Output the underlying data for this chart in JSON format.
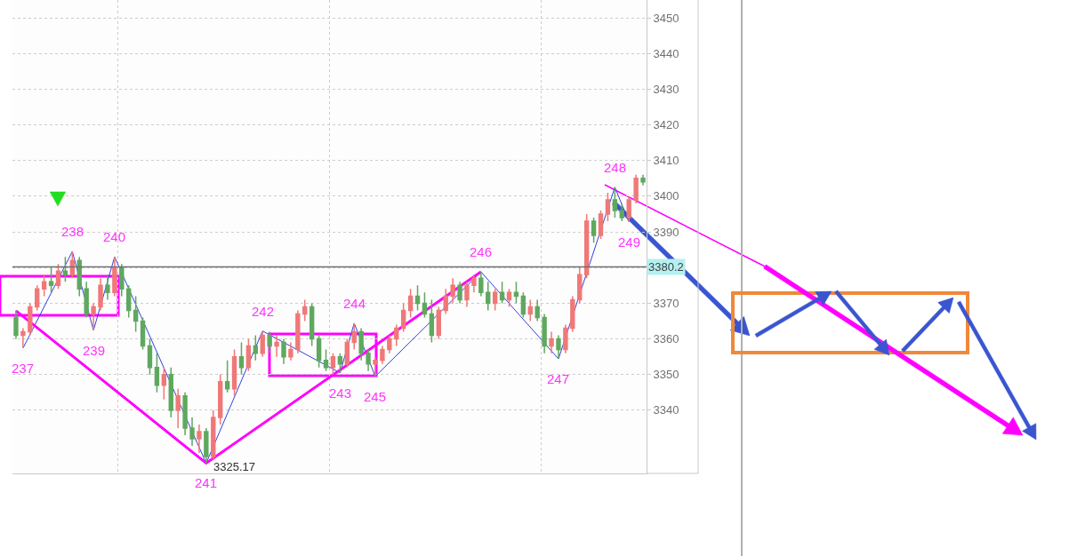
{
  "chart_data": {
    "type": "candlestick",
    "categories": [
      null,
      null,
      null,
      null,
      null,
      null,
      null,
      null,
      null,
      null,
      null,
      null,
      null,
      null,
      null,
      null,
      null,
      null,
      null,
      null,
      null,
      null,
      null,
      null,
      null,
      null,
      null,
      null,
      null,
      null,
      null,
      null,
      null,
      null,
      null,
      null,
      null,
      null,
      null,
      null,
      null,
      null,
      null,
      null,
      null,
      null,
      null,
      null,
      null,
      null,
      null,
      null,
      null,
      null,
      null,
      null,
      null,
      null,
      null,
      null,
      null,
      null,
      null,
      null,
      null,
      null,
      null,
      null,
      null,
      null,
      null,
      null,
      null,
      null,
      null,
      null,
      null,
      null,
      null,
      null,
      null,
      null,
      null,
      null,
      null,
      null,
      null,
      null,
      null,
      null
    ],
    "ohlc": [
      [
        3366,
        3368,
        3360,
        3361
      ],
      [
        3361,
        3363,
        3357.4,
        3362
      ],
      [
        3362,
        3370,
        3361,
        3369
      ],
      [
        3369,
        3375,
        3368,
        3374
      ],
      [
        3374,
        3378,
        3372,
        3376
      ],
      [
        3376,
        3380,
        3373,
        3375
      ],
      [
        3375,
        3381,
        3374,
        3379
      ],
      [
        3379,
        3383,
        3376,
        3378
      ],
      [
        3378,
        3384.5,
        3377,
        3382
      ],
      [
        3382,
        3383,
        3372,
        3374
      ],
      [
        3374,
        3376,
        3366,
        3367
      ],
      [
        3367,
        3370,
        3362.4,
        3369
      ],
      [
        3369,
        3377,
        3368,
        3375
      ],
      [
        3375,
        3378,
        3371,
        3373
      ],
      [
        3373,
        3383,
        3372,
        3380
      ],
      [
        3380,
        3381,
        3372,
        3374
      ],
      [
        3374,
        3375,
        3366,
        3368
      ],
      [
        3368,
        3372,
        3362,
        3365
      ],
      [
        3365,
        3366,
        3357,
        3358
      ],
      [
        3358,
        3360,
        3350,
        3352
      ],
      [
        3352,
        3356,
        3345,
        3347
      ],
      [
        3347,
        3352,
        3343,
        3350
      ],
      [
        3350,
        3352,
        3338,
        3340
      ],
      [
        3340,
        3346,
        3335,
        3344
      ],
      [
        3344,
        3345,
        3333,
        3335
      ],
      [
        3335,
        3338,
        3330,
        3332
      ],
      [
        3332,
        3336,
        3328,
        3334
      ],
      [
        3334,
        3335,
        3325.17,
        3327
      ],
      [
        3327,
        3340,
        3326,
        3338
      ],
      [
        3338,
        3350,
        3336,
        3348
      ],
      [
        3348,
        3354,
        3345,
        3346
      ],
      [
        3346,
        3357,
        3344,
        3355
      ],
      [
        3355,
        3359,
        3350,
        3352
      ],
      [
        3352,
        3360,
        3351,
        3358
      ],
      [
        3358,
        3361,
        3354,
        3356
      ],
      [
        3356,
        3362.2,
        3355,
        3361
      ],
      [
        3361,
        3362,
        3356,
        3358
      ],
      [
        3358,
        3361,
        3355,
        3359
      ],
      [
        3359,
        3360,
        3353,
        3355
      ],
      [
        3355,
        3359,
        3354,
        3357
      ],
      [
        3357,
        3368,
        3356,
        3367
      ],
      [
        3367,
        3371,
        3365,
        3369
      ],
      [
        3369,
        3370,
        3358,
        3360
      ],
      [
        3360,
        3361,
        3352,
        3354
      ],
      [
        3354,
        3357,
        3351,
        3352
      ],
      [
        3352,
        3356,
        3350,
        3355
      ],
      [
        3355,
        3356,
        3350.5,
        3353
      ],
      [
        3353,
        3360,
        3352,
        3359
      ],
      [
        3359,
        3364.4,
        3357,
        3362
      ],
      [
        3362,
        3363,
        3354,
        3356
      ],
      [
        3356,
        3357,
        3351,
        3353
      ],
      [
        3353,
        3355,
        3349.5,
        3354
      ],
      [
        3354,
        3358,
        3353,
        3357
      ],
      [
        3357,
        3361,
        3356,
        3360
      ],
      [
        3360,
        3364,
        3358,
        3363
      ],
      [
        3363,
        3370,
        3362,
        3368
      ],
      [
        3368,
        3374,
        3366,
        3372
      ],
      [
        3372,
        3375,
        3368,
        3370
      ],
      [
        3370,
        3373,
        3366,
        3367
      ],
      [
        3367,
        3371,
        3359,
        3361
      ],
      [
        3361,
        3369,
        3360,
        3368
      ],
      [
        3368,
        3374,
        3367,
        3372
      ],
      [
        3372,
        3377,
        3370,
        3375
      ],
      [
        3375,
        3376,
        3370,
        3371
      ],
      [
        3371,
        3376,
        3369,
        3375
      ],
      [
        3375,
        3378,
        3373,
        3377
      ],
      [
        3377,
        3378.8,
        3372,
        3373
      ],
      [
        3373,
        3376,
        3368,
        3370
      ],
      [
        3370,
        3374,
        3368,
        3373
      ],
      [
        3373,
        3376,
        3370,
        3371
      ],
      [
        3371,
        3374,
        3369,
        3373
      ],
      [
        3373,
        3376,
        3370,
        3372
      ],
      [
        3372,
        3373,
        3366,
        3367
      ],
      [
        3367,
        3371,
        3365,
        3369
      ],
      [
        3369,
        3371,
        3365,
        3366
      ],
      [
        3366,
        3367,
        3356,
        3358
      ],
      [
        3358,
        3362,
        3356,
        3360
      ],
      [
        3360,
        3361,
        3354.4,
        3357
      ],
      [
        3357,
        3364,
        3356,
        3363
      ],
      [
        3363,
        3372,
        3362,
        3371
      ],
      [
        3371,
        3380,
        3370,
        3378
      ],
      [
        3378,
        3395,
        3377,
        3393
      ],
      [
        3393,
        3394,
        3387,
        3389
      ],
      [
        3389,
        3396,
        3388,
        3395
      ],
      [
        3395,
        3401,
        3393,
        3399
      ],
      [
        3399,
        3402.5,
        3394,
        3396
      ],
      [
        3396,
        3398,
        3393,
        3394
      ],
      [
        3394,
        3400,
        3392.8,
        3399
      ],
      [
        3399,
        3406,
        3398,
        3405
      ],
      [
        3405,
        3406,
        3403,
        3404
      ]
    ],
    "colors": [
      "#5fa85f",
      "#f07878",
      "#f07878",
      "#f07878",
      "#f07878",
      "#5fa85f",
      "#f07878",
      "#5fa85f",
      "#f07878",
      "#5fa85f",
      "#5fa85f",
      "#f07878",
      "#f07878",
      "#5fa85f",
      "#f07878",
      "#5fa85f",
      "#5fa85f",
      "#5fa85f",
      "#5fa85f",
      "#5fa85f",
      "#5fa85f",
      "#f07878",
      "#5fa85f",
      "#f07878",
      "#5fa85f",
      "#5fa85f",
      "#f07878",
      "#5fa85f",
      "#f07878",
      "#f07878",
      "#5fa85f",
      "#f07878",
      "#5fa85f",
      "#f07878",
      "#5fa85f",
      "#f07878",
      "#5fa85f",
      "#f07878",
      "#5fa85f",
      "#f07878",
      "#f07878",
      "#f07878",
      "#5fa85f",
      "#5fa85f",
      "#5fa85f",
      "#f07878",
      "#5fa85f",
      "#f07878",
      "#f07878",
      "#5fa85f",
      "#5fa85f",
      "#f07878",
      "#f07878",
      "#f07878",
      "#f07878",
      "#f07878",
      "#f07878",
      "#5fa85f",
      "#5fa85f",
      "#5fa85f",
      "#f07878",
      "#f07878",
      "#f07878",
      "#5fa85f",
      "#f07878",
      "#f07878",
      "#5fa85f",
      "#5fa85f",
      "#f07878",
      "#5fa85f",
      "#f07878",
      "#5fa85f",
      "#5fa85f",
      "#f07878",
      "#5fa85f",
      "#5fa85f",
      "#f07878",
      "#5fa85f",
      "#f07878",
      "#f07878",
      "#f07878",
      "#f07878",
      "#5fa85f",
      "#f07878",
      "#f07878",
      "#5fa85f",
      "#5fa85f",
      "#f07878",
      "#f07878",
      "#5fa85f"
    ],
    "series": [
      {
        "type": "line",
        "color": "#3040e0",
        "values": [
          null,
          3357.4,
          null,
          null,
          null,
          null,
          null,
          null,
          3384.5,
          null,
          null,
          3362.4,
          null,
          null,
          3383,
          null,
          null,
          null,
          null,
          null,
          null,
          null,
          null,
          null,
          null,
          null,
          null,
          3325.17,
          null,
          null,
          null,
          null,
          null,
          null,
          null,
          3362.2,
          null,
          null,
          null,
          null,
          null,
          null,
          null,
          null,
          null,
          null,
          3350.5,
          null,
          3364.4,
          null,
          null,
          3349.5,
          null,
          null,
          null,
          null,
          null,
          null,
          null,
          null,
          null,
          null,
          null,
          null,
          null,
          null,
          3378.8,
          null,
          null,
          null,
          null,
          null,
          null,
          null,
          null,
          null,
          null,
          3354.4,
          null,
          null,
          null,
          null,
          null,
          null,
          null,
          3402.5,
          null,
          3392.8,
          null,
          null
        ]
      },
      {
        "type": "line",
        "color": "#ff00ff",
        "values": [
          3367.9,
          null,
          null,
          null,
          null,
          null,
          null,
          null,
          null,
          null,
          null,
          null,
          null,
          null,
          null,
          null,
          null,
          null,
          null,
          null,
          null,
          null,
          null,
          null,
          null,
          null,
          null,
          3325.17,
          null,
          null,
          null,
          null,
          null,
          null,
          null,
          null,
          null,
          null,
          null,
          null,
          null,
          null,
          null,
          null,
          null,
          null,
          null,
          null,
          null,
          null,
          null,
          null,
          null,
          null,
          null,
          null,
          null,
          null,
          null,
          null,
          null,
          null,
          null,
          null,
          null,
          null,
          3378.8,
          null,
          null,
          null,
          null,
          null,
          null,
          null,
          null,
          null,
          null,
          null,
          null,
          null,
          null,
          null,
          null,
          null,
          null,
          null,
          null,
          null,
          null,
          null
        ]
      }
    ],
    "annotations": [
      {
        "text": "237",
        "y": 3357.4
      },
      {
        "text": "238",
        "y": 3384.5
      },
      {
        "text": "239",
        "y": 3362.4
      },
      {
        "text": "240",
        "y": 3383
      },
      {
        "text": "241",
        "y": 3325.17
      },
      {
        "text": "242",
        "y": 3362.2
      },
      {
        "text": "243",
        "y": 3350.5
      },
      {
        "text": "244",
        "y": 3364.4
      },
      {
        "text": "245",
        "y": 3349.5
      },
      {
        "text": "246",
        "y": 3378.8
      },
      {
        "text": "247",
        "y": 3354.4
      },
      {
        "text": "248",
        "y": 3402.5
      },
      {
        "text": "249",
        "y": 3392.8
      },
      "3325.17"
    ],
    "ref_lines": [
      {
        "axis": "y",
        "value": 3380.2,
        "label": "3380.2",
        "color": "#707070"
      }
    ],
    "ylim": [
      3322.3,
      3455
    ],
    "yticks": [
      3340,
      3350,
      3360,
      3370,
      {
        "value": 3380,
        "label": null
      },
      3390,
      3400,
      3410,
      3420,
      3430,
      3440,
      3450
    ],
    "grid": true
  }
}
